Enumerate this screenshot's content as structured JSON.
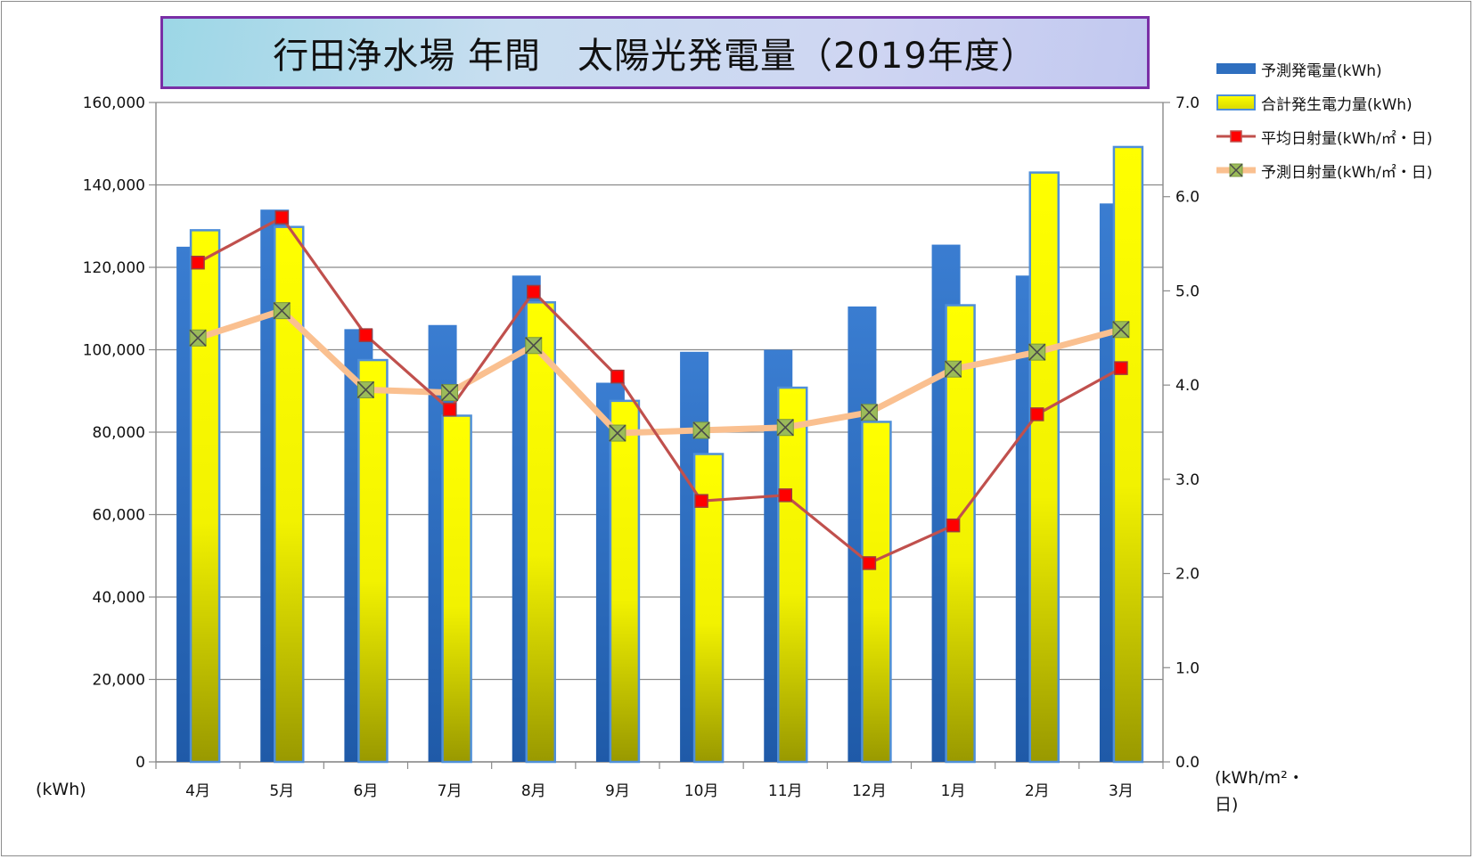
{
  "colors": {
    "bar_blue": "#2f6fbf",
    "bar_yellow_top": "#ffff00",
    "bar_yellow_bottom": "#999900",
    "bar_yellow_border": "#4f8fd8",
    "line_red": "#c0504d",
    "marker_red": "#ff0000",
    "line_peach": "#fac090",
    "marker_green": "#9bbb59",
    "title_border": "#7a2fa6"
  },
  "legend_icons": [
    "blue-bar-swatch",
    "yellow-bar-swatch",
    "red-square-line-swatch",
    "green-x-line-swatch"
  ],
  "chart_data": {
    "type": "bar",
    "title": "行田浄水場 年間　太陽光発電量（2019年度）",
    "categories": [
      "4月",
      "5月",
      "6月",
      "7月",
      "8月",
      "9月",
      "10月",
      "11月",
      "12月",
      "1月",
      "2月",
      "3月"
    ],
    "y_left": {
      "unit_label": "(kWh)",
      "lim": [
        0,
        160000
      ],
      "ticks": [
        "0",
        "20,000",
        "40,000",
        "60,000",
        "80,000",
        "100,000",
        "120,000",
        "140,000",
        "160,000"
      ]
    },
    "y_right": {
      "unit_label_line1": "(kWh/m²・",
      "unit_label_line2": "日)",
      "lim": [
        0,
        7
      ],
      "ticks": [
        "0.0",
        "1.0",
        "2.0",
        "3.0",
        "4.0",
        "5.0",
        "6.0",
        "7.0"
      ]
    },
    "grid": true,
    "legend_position": "right",
    "series": [
      {
        "name": "予測発電量(kWh)",
        "type": "bar",
        "axis": "left",
        "values": [
          125000,
          134000,
          105000,
          106000,
          118000,
          92000,
          99500,
          100000,
          110500,
          125500,
          118000,
          135500
        ]
      },
      {
        "name": "合計発生電力量(kWh)",
        "type": "bar",
        "axis": "left",
        "values": [
          129000,
          129800,
          97500,
          84000,
          111500,
          87600,
          74700,
          90800,
          82500,
          110800,
          143000,
          149200
        ]
      },
      {
        "name": "平均日射量(kWh/㎡・日)",
        "type": "line",
        "axis": "right",
        "values": [
          5.3,
          5.78,
          4.53,
          3.74,
          4.99,
          4.09,
          2.77,
          2.83,
          2.11,
          2.51,
          3.69,
          4.18
        ]
      },
      {
        "name": "予測日射量(kWh/㎡・日)",
        "type": "line",
        "axis": "right",
        "values": [
          4.5,
          4.79,
          3.95,
          3.92,
          4.42,
          3.49,
          3.52,
          3.55,
          3.71,
          4.17,
          4.35,
          4.59
        ]
      }
    ]
  }
}
